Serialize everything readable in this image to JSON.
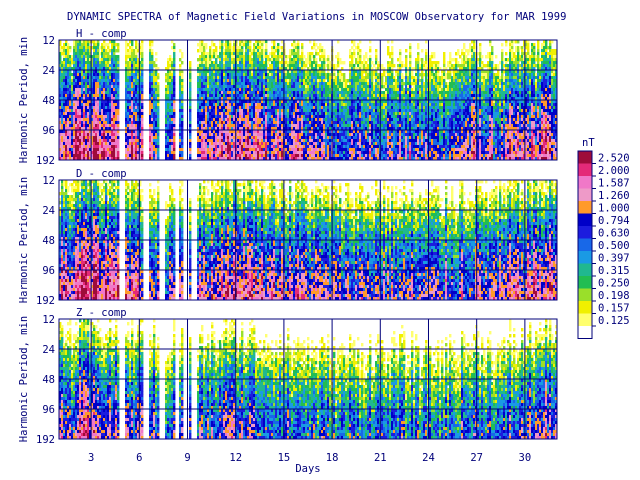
{
  "chart_data": {
    "type": "heatmap",
    "title": "DYNAMIC SPECTRA of Magnetic Field Variations in MOSCOW Observatory for MAR 1999",
    "xlabel": "Days",
    "ylabel": "Harmonic Period, min",
    "x_ticks": [
      3,
      6,
      9,
      12,
      15,
      18,
      21,
      24,
      27,
      30
    ],
    "xlim": [
      1,
      32
    ],
    "y_scale": "log2",
    "y_ticks": [
      12,
      24,
      48,
      96,
      192
    ],
    "ylim": [
      12,
      192
    ],
    "grid": true,
    "panels": [
      {
        "label": "H - comp",
        "intensity_by_day": [
          0.62,
          0.95,
          0.85,
          0.8,
          0.65,
          0.6,
          0.4,
          0.55,
          0.5,
          0.6,
          0.75,
          0.7,
          0.68,
          0.6,
          0.55,
          0.5,
          0.42,
          0.38,
          0.4,
          0.42,
          0.38,
          0.4,
          0.38,
          0.35,
          0.4,
          0.55,
          0.45,
          0.4,
          0.55,
          0.6,
          0.7
        ]
      },
      {
        "label": "D - comp",
        "intensity_by_day": [
          0.68,
          0.98,
          0.88,
          0.82,
          0.66,
          0.62,
          0.42,
          0.55,
          0.52,
          0.62,
          0.78,
          0.72,
          0.68,
          0.62,
          0.55,
          0.52,
          0.45,
          0.4,
          0.42,
          0.45,
          0.4,
          0.42,
          0.4,
          0.38,
          0.42,
          0.5,
          0.45,
          0.42,
          0.58,
          0.65,
          0.75
        ]
      },
      {
        "label": "Z - comp",
        "intensity_by_day": [
          0.4,
          0.6,
          0.52,
          0.48,
          0.4,
          0.38,
          0.28,
          0.32,
          0.3,
          0.35,
          0.42,
          0.4,
          0.36,
          0.32,
          0.28,
          0.26,
          0.24,
          0.22,
          0.24,
          0.26,
          0.24,
          0.24,
          0.22,
          0.22,
          0.25,
          0.3,
          0.28,
          0.25,
          0.32,
          0.4,
          0.48
        ]
      }
    ],
    "gaps_days": [
      4.95,
      6.45,
      7.45,
      8.35,
      8.95,
      9.45
    ],
    "legend": {
      "unit": "nT",
      "placement": "right",
      "levels": [
        "2.520",
        "2.000",
        "1.587",
        "1.260",
        "1.000",
        "0.794",
        "0.630",
        "0.500",
        "0.397",
        "0.315",
        "0.250",
        "0.198",
        "0.157",
        "0.125"
      ],
      "colors": [
        "#9e0c3a",
        "#e42a78",
        "#f078c8",
        "#ee9ac8",
        "#ff9a2a",
        "#0000c8",
        "#1c1cde",
        "#1868e8",
        "#1a9ae4",
        "#20b890",
        "#22bd52",
        "#9adf2a",
        "#f0f000",
        "#ffff6e",
        "#ffffff"
      ]
    }
  }
}
